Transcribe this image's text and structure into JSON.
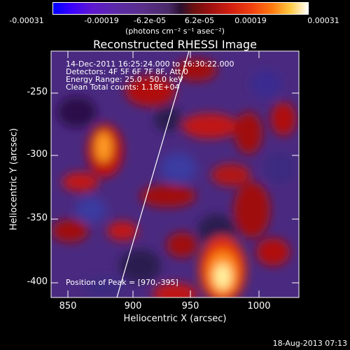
{
  "colorbar": {
    "tick_labels": [
      "-0.00031",
      "-0.00019",
      "-6.2e-05",
      "6.2e-05",
      "0.00019",
      "0.00031"
    ],
    "units": "(photons cm⁻² s⁻¹ asec⁻²)",
    "colors": [
      "#0000ff",
      "#5a2e8a",
      "#2a1030",
      "#a01010",
      "#f04010",
      "#ffc840",
      "#ffffff"
    ]
  },
  "plot": {
    "title": "Reconstructed RHESSI Image",
    "xlabel": "Heliocentric X (arcsec)",
    "ylabel": "Heliocentric Y (arcsec)",
    "x_ticks": [
      "850",
      "900",
      "950",
      "1000"
    ],
    "y_ticks": [
      "-250",
      "-300",
      "-350",
      "-400"
    ],
    "info_lines": [
      "14-Dec-2011 16:25:24.000 to 16:30:22.000",
      "Detectors: 4F 5F 6F 7F 8F, Att 0",
      "Energy Range: 25.0 - 50.0 keV",
      "Clean     Total counts: 1.18E+04"
    ],
    "peak_text": "Position of Peak = [970,-395]"
  },
  "timestamp": "18-Aug-2013 07:13"
}
